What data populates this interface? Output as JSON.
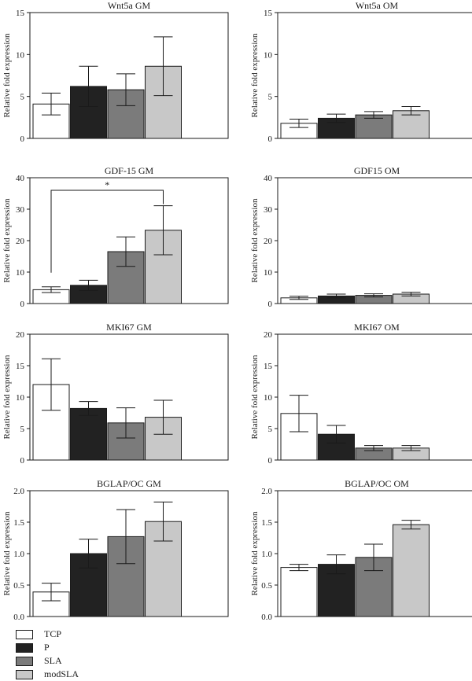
{
  "legend": {
    "items": [
      {
        "label": "TCP",
        "color": "#ffffff"
      },
      {
        "label": "P",
        "color": "#222222"
      },
      {
        "label": "SLA",
        "color": "#7b7b7b"
      },
      {
        "label": "modSLA",
        "color": "#c8c8c8"
      }
    ]
  },
  "chart_data": [
    {
      "type": "bar",
      "title": "Wnt5a GM",
      "ylabel": "Relative fold expression",
      "ylim": [
        0,
        15
      ],
      "yticks": [
        "0",
        "5",
        "10",
        "15"
      ],
      "categories": [
        "TCP",
        "P",
        "SLA",
        "modSLA"
      ],
      "values": [
        4.1,
        6.2,
        5.8,
        8.6
      ],
      "errors": [
        1.3,
        2.4,
        1.9,
        3.5
      ]
    },
    {
      "type": "bar",
      "title": "Wnt5a OM",
      "ylabel": "Relative fold expression",
      "ylim": [
        0,
        15
      ],
      "yticks": [
        "0",
        "5",
        "10",
        "15"
      ],
      "categories": [
        "TCP",
        "P",
        "SLA",
        "modSLA"
      ],
      "values": [
        1.8,
        2.4,
        2.8,
        3.3
      ],
      "errors": [
        0.5,
        0.5,
        0.4,
        0.5
      ]
    },
    {
      "type": "bar",
      "title": "GDF-15 GM",
      "ylabel": "Relative fold expression",
      "ylim": [
        0,
        40
      ],
      "yticks": [
        "0",
        "10",
        "20",
        "30",
        "40"
      ],
      "categories": [
        "TCP",
        "P",
        "SLA",
        "modSLA"
      ],
      "values": [
        4.4,
        5.8,
        16.5,
        23.3
      ],
      "errors": [
        0.9,
        1.6,
        4.7,
        7.8
      ],
      "annotation": {
        "text": "*",
        "from": 0,
        "to": 3,
        "y": 36
      }
    },
    {
      "type": "bar",
      "title": "GDF15 OM",
      "ylabel": "Relative fold expression",
      "ylim": [
        0,
        40
      ],
      "yticks": [
        "0",
        "10",
        "20",
        "30",
        "40"
      ],
      "categories": [
        "TCP",
        "P",
        "SLA",
        "modSLA"
      ],
      "values": [
        1.8,
        2.4,
        2.6,
        3.0
      ],
      "errors": [
        0.5,
        0.6,
        0.5,
        0.6
      ]
    },
    {
      "type": "bar",
      "title": "MKI67 GM",
      "ylabel": "Relative fold expression",
      "ylim": [
        0,
        20
      ],
      "yticks": [
        "0",
        "5",
        "10",
        "15",
        "20"
      ],
      "categories": [
        "TCP",
        "P",
        "SLA",
        "modSLA"
      ],
      "values": [
        12.0,
        8.2,
        5.9,
        6.8
      ],
      "errors": [
        4.1,
        1.1,
        2.4,
        2.7
      ]
    },
    {
      "type": "bar",
      "title": "MKI67 OM",
      "ylabel": "Relative fold expression",
      "ylim": [
        0,
        20
      ],
      "yticks": [
        "0",
        "5",
        "10",
        "15",
        "20"
      ],
      "categories": [
        "TCP",
        "P",
        "SLA",
        "modSLA"
      ],
      "values": [
        7.4,
        4.1,
        1.9,
        1.9
      ],
      "errors": [
        2.9,
        1.4,
        0.4,
        0.4
      ]
    },
    {
      "type": "bar",
      "title": "BGLAP/OC GM",
      "ylabel": "Relative fold expression",
      "ylim": [
        0,
        2.0
      ],
      "yticks": [
        "0.0",
        "0.5",
        "1.0",
        "1.5",
        "2.0"
      ],
      "categories": [
        "TCP",
        "P",
        "SLA",
        "modSLA"
      ],
      "values": [
        0.39,
        1.0,
        1.27,
        1.51
      ],
      "errors": [
        0.14,
        0.23,
        0.43,
        0.31
      ]
    },
    {
      "type": "bar",
      "title": "BGLAP/OC OM",
      "ylabel": "Relative fold expression",
      "ylim": [
        0,
        2.0
      ],
      "yticks": [
        "0.0",
        "0.5",
        "1.0",
        "1.5",
        "2.0"
      ],
      "categories": [
        "TCP",
        "P",
        "SLA",
        "modSLA"
      ],
      "values": [
        0.78,
        0.83,
        0.94,
        1.46
      ],
      "errors": [
        0.05,
        0.15,
        0.21,
        0.07
      ]
    }
  ]
}
